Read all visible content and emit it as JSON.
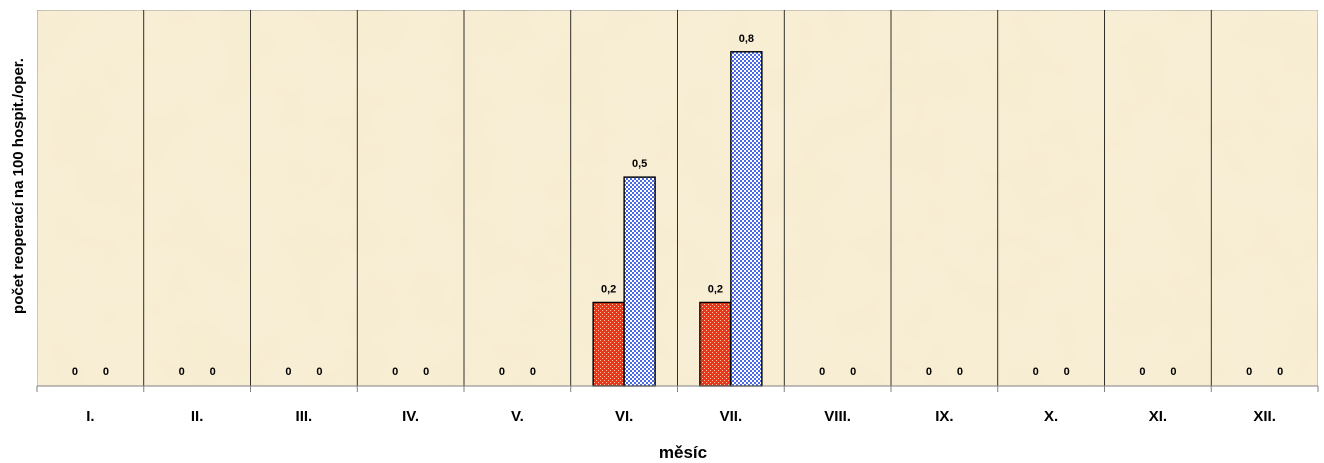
{
  "chart_data": {
    "type": "bar",
    "xlabel": "měsíc",
    "ylabel": "počet reoperací na 100 hospit./oper.",
    "ylim": [
      0,
      0.9
    ],
    "grid": false,
    "categories": [
      "I.",
      "II.",
      "III.",
      "IV.",
      "V.",
      "VI.",
      "VII.",
      "VIII.",
      "IX.",
      "X.",
      "XI.",
      "XII."
    ],
    "series": [
      {
        "values": [
          0,
          0,
          0,
          0,
          0,
          0.2,
          0.2,
          0,
          0,
          0,
          0,
          0
        ],
        "labels": [
          "0",
          "0",
          "0",
          "0",
          "0",
          "0,2",
          "0,2",
          "0",
          "0",
          "0",
          "0",
          "0"
        ],
        "color": "#e8361c",
        "pattern": "dotted"
      },
      {
        "values": [
          0,
          0,
          0,
          0,
          0,
          0.5,
          0.8,
          0,
          0,
          0,
          0,
          0
        ],
        "labels": [
          "0",
          "0",
          "0",
          "0",
          "0",
          "0,5",
          "0,8",
          "0",
          "0",
          "0",
          "0",
          "0"
        ],
        "color": "#3b5fe0",
        "pattern": "checkered"
      }
    ],
    "plot_background": "#f7ecd0"
  }
}
